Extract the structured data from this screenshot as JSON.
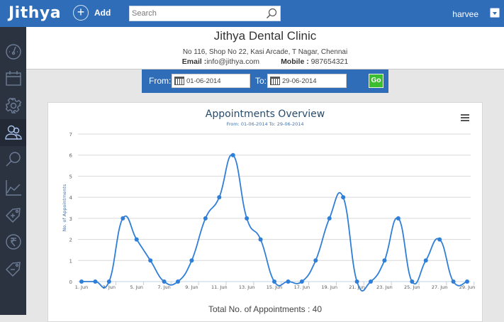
{
  "topbar": {
    "logo": "Jithya",
    "add_label": "Add",
    "search_placeholder": "Search",
    "user_name": "harvee"
  },
  "sidebar": {
    "items": [
      {
        "name": "dashboard",
        "icon": "speedometer-icon"
      },
      {
        "name": "calendar",
        "icon": "calendar-icon"
      },
      {
        "name": "settings",
        "icon": "gear-icon"
      },
      {
        "name": "patients",
        "icon": "users-icon",
        "active": true
      },
      {
        "name": "search",
        "icon": "search-icon"
      },
      {
        "name": "reports",
        "icon": "line-chart-icon"
      },
      {
        "name": "add-tag",
        "icon": "tag-plus-icon"
      },
      {
        "name": "billing",
        "icon": "rupee-icon"
      },
      {
        "name": "remove-tag",
        "icon": "tag-minus-icon"
      }
    ]
  },
  "clinic": {
    "name": "Jithya Dental Clinic",
    "address": "No 116, Shop No 22, Kasi Arcade, T Nagar, Chennai",
    "email_label": "Email :",
    "email": "info@jithya.com",
    "mobile_label": "Mobile :",
    "mobile": "987654321"
  },
  "filter": {
    "from_label": "From:",
    "from_value": "01-06-2014",
    "to_label": "To:",
    "to_value": "29-06-2014",
    "go_label": "Go"
  },
  "colors": {
    "brand": "#2f6db8",
    "sidebar": "#2b3240",
    "series": "#2f7ed8",
    "go": "#3bbf31"
  },
  "chart_data": {
    "type": "line",
    "title": "Appointments Overview",
    "subtitle": "From: 01-06-2014 To: 29-06-2014",
    "xlabel": "",
    "ylabel": "No. of Appointments",
    "ylim": [
      0,
      7
    ],
    "yticks": [
      0,
      1,
      2,
      3,
      4,
      5,
      6,
      7
    ],
    "grid": true,
    "legend": "none",
    "x": [
      "1. Jun",
      "2. Jun",
      "3. Jun",
      "4. Jun",
      "5. Jun",
      "6. Jun",
      "7. Jun",
      "8. Jun",
      "9. Jun",
      "10. Jun",
      "11. Jun",
      "12. Jun",
      "13. Jun",
      "14. Jun",
      "15. Jun",
      "16. Jun",
      "17. Jun",
      "18. Jun",
      "19. Jun",
      "20. Jun",
      "21. Jun",
      "22. Jun",
      "23. Jun",
      "24. Jun",
      "25. Jun",
      "26. Jun",
      "27. Jun",
      "28. Jun",
      "29. Jun"
    ],
    "xtick_labels": [
      "1. Jun",
      "3. Jun",
      "5. Jun",
      "7. Jun",
      "9. Jun",
      "11. Jun",
      "13. Jun",
      "15. Jun",
      "17. Jun",
      "19. Jun",
      "21. Jun",
      "23. Jun",
      "25. Jun",
      "27. Jun",
      "29. Jun"
    ],
    "series": [
      {
        "name": "Appointments",
        "values": [
          0,
          0,
          0,
          3,
          2,
          1,
          0,
          0,
          1,
          3,
          4,
          6,
          3,
          2,
          0,
          0,
          0,
          1,
          3,
          4,
          0,
          0,
          1,
          3,
          0,
          1,
          2,
          0,
          0
        ]
      }
    ]
  },
  "footer": {
    "total_label": "Total No. of Appointments : 40"
  }
}
